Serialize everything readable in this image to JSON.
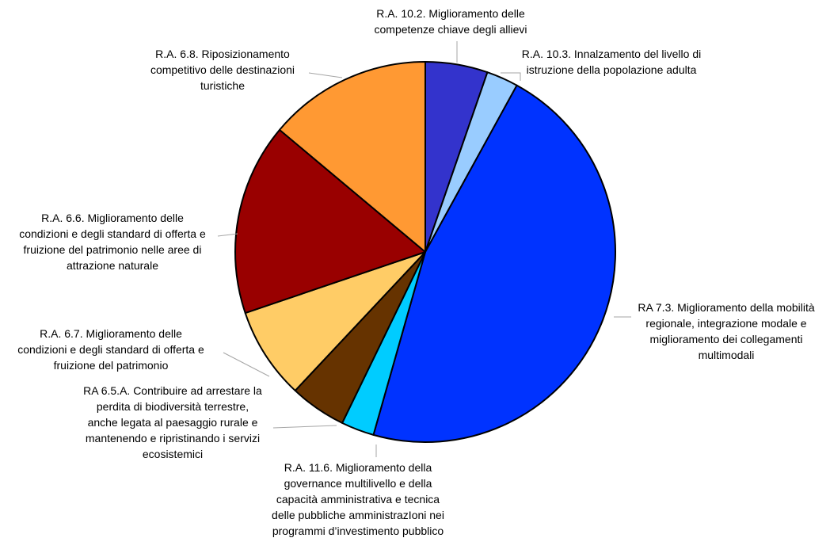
{
  "chart_data": {
    "type": "pie",
    "start": "top",
    "direction": "clockwise",
    "legend": "none",
    "slices": [
      {
        "label": "R.A. 10.2. Miglioramento delle competenze chiave degli allievi",
        "value": 5.3,
        "color": "#3333cc"
      },
      {
        "label": "R.A. 10.3. Innalzamento del livello di istruzione della popolazione adulta",
        "value": 2.7,
        "color": "#99ccff"
      },
      {
        "label": "RA 7.3. Miglioramento della mobilità regionale, integrazione modale e miglioramento dei collegamenti multimodali",
        "value": 46.4,
        "color": "#0033ff"
      },
      {
        "label": "R.A. 11.6. Miglioramento della governance multilivello e della capacità amministrativa e tecnica delle pubbliche amministrazIoni nei programmi d’investimento pubblico",
        "value": 2.8,
        "color": "#00ccff"
      },
      {
        "label": "RA 6.5.A. Contribuire ad arrestare la perdita di biodiversità terrestre, anche legata al paesaggio rurale e mantenendo e ripristinando i servizi ecosistemici",
        "value": 4.8,
        "color": "#663300"
      },
      {
        "label": "R.A. 6.7. Miglioramento delle condizioni e degli standard di offerta e fruizione del patrimonio",
        "value": 7.8,
        "color": "#ffcc66"
      },
      {
        "label": "R.A. 6.6. Miglioramento delle condizioni e degli standard di offerta e fruizione del patrimonio nelle aree di attrazione naturale",
        "value": 16.3,
        "color": "#990000"
      },
      {
        "label": "R.A. 6.8. Riposizionamento competitivo delle destinazioni turistiche",
        "value": 13.9,
        "color": "#ff9933"
      }
    ],
    "label_lines": [
      [
        "R.A. 10.2. Miglioramento delle",
        "competenze chiave degli allievi"
      ],
      [
        "R.A. 10.3. Innalzamento del livello di",
        "istruzione della popolazione adulta"
      ],
      [
        "RA 7.3. Miglioramento della mobilità",
        "regionale, integrazione modale e",
        "miglioramento dei collegamenti",
        "multimodali"
      ],
      [
        "R.A. 11.6. Miglioramento della",
        "governance multilivello e della",
        "capacità amministrativa e tecnica",
        "delle pubbliche amministrazIoni nei",
        "programmi d’investimento pubblico"
      ],
      [
        "RA 6.5.A. Contribuire ad arrestare la",
        "perdita di biodiversità terrestre,",
        "anche legata al paesaggio rurale e",
        "mantenendo e ripristinando i servizi",
        "ecosistemici"
      ],
      [
        "R.A. 6.7. Miglioramento delle",
        "condizioni e degli standard di offerta e",
        "fruizione del patrimonio"
      ],
      [
        "R.A. 6.6. Miglioramento delle",
        "condizioni e degli standard di offerta e",
        "fruizione del patrimonio nelle aree di",
        "attrazione naturale"
      ],
      [
        "R.A. 6.8. Riposizionamento",
        "competitivo delle destinazioni",
        "turistiche"
      ]
    ]
  }
}
